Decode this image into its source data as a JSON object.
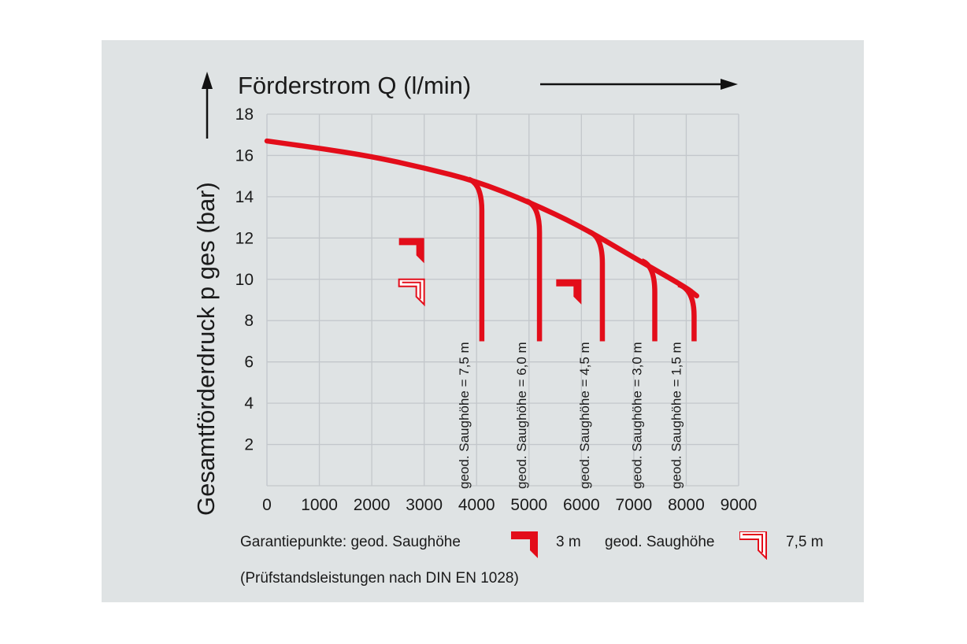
{
  "chart_data": {
    "type": "line",
    "xlabel": "Förderstrom Q (l/min)",
    "ylabel": "Gesamtförderdruck p ges (bar)",
    "xlim": [
      0,
      9000
    ],
    "ylim": [
      0,
      18
    ],
    "x_ticks": [
      0,
      1000,
      2000,
      3000,
      4000,
      5000,
      6000,
      7000,
      8000,
      9000
    ],
    "y_ticks": [
      2,
      4,
      6,
      8,
      10,
      12,
      14,
      16,
      18
    ],
    "grid": true,
    "main_curve": {
      "x": [
        0,
        1000,
        2000,
        3000,
        4000,
        5000,
        6000,
        7000,
        8000,
        8200
      ],
      "y": [
        16.7,
        16.35,
        15.95,
        15.4,
        14.75,
        13.75,
        12.55,
        11.05,
        9.6,
        9.2
      ]
    },
    "series": [
      {
        "name": "geod. Saughöhe = 7,5 m",
        "drop_x": 4100,
        "start_x": 3850,
        "start_y": 14.85,
        "end_y": 7
      },
      {
        "name": "geod. Saughöhe = 6,0 m",
        "drop_x": 5200,
        "start_x": 4950,
        "start_y": 13.8,
        "end_y": 7
      },
      {
        "name": "geod. Saughöhe = 4,5 m",
        "drop_x": 6400,
        "start_x": 6150,
        "start_y": 12.3,
        "end_y": 7
      },
      {
        "name": "geod. Saughöhe = 3,0 m",
        "drop_x": 7400,
        "start_x": 7150,
        "start_y": 10.9,
        "end_y": 7
      },
      {
        "name": "geod. Saughöhe = 1,5 m",
        "drop_x": 8150,
        "start_x": 7850,
        "start_y": 9.75,
        "end_y": 7
      }
    ],
    "guarantee_points": [
      {
        "type": "3 m",
        "x": 3000,
        "y": 12
      },
      {
        "type": "3 m",
        "x": 6000,
        "y": 10
      },
      {
        "type": "7,5 m",
        "x": 3000,
        "y": 10
      }
    ],
    "colors": {
      "curve": "#e30d1a",
      "grid": "#c3c7cb",
      "panel": "#dfe3e4"
    }
  },
  "legend": {
    "prefix": "Garantiepunkte: geod. Saughöhe",
    "item1": "3 m",
    "middle": "geod. Saughöhe",
    "item2": "7,5 m"
  },
  "footnote": "(Prüfstandsleistungen nach DIN EN 1028)"
}
